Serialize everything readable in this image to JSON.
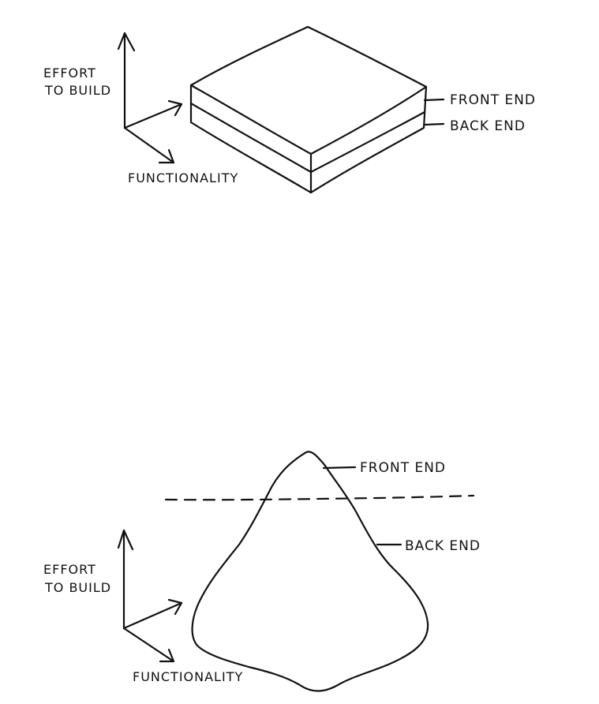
{
  "diagrams": [
    {
      "id": "slab",
      "y_axis_label_line1": "EFFORT",
      "y_axis_label_line2": "TO BUILD",
      "x_axis_label": "FUNCTIONALITY",
      "front_end_label": "FRONT END",
      "back_end_label": "BACK END"
    },
    {
      "id": "iceberg",
      "y_axis_label_line1": "EFFORT",
      "y_axis_label_line2": "TO BUILD",
      "x_axis_label": "FUNCTIONALITY",
      "front_end_label": "FRONT END",
      "back_end_label": "BACK END"
    }
  ],
  "colors": {
    "ink": "#111111",
    "background": "#ffffff"
  }
}
